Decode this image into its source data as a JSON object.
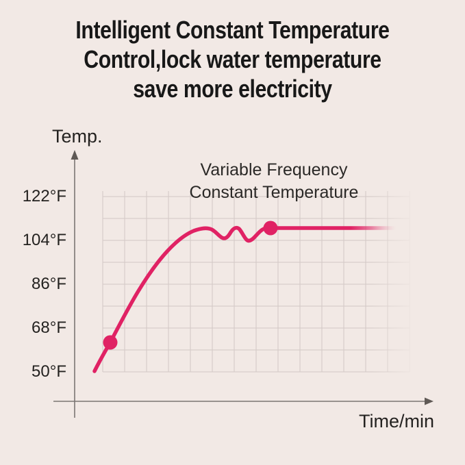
{
  "colors": {
    "background": "#f2e9e5",
    "title_text": "#181818",
    "label_text": "#242220",
    "curve": "#e02264",
    "grid": "#d2c8c5",
    "axis": "#7b7572"
  },
  "title": {
    "lines": [
      "Intelligent Constant Temperature",
      "Control,lock water temperature",
      "save more electricity"
    ]
  },
  "chart": {
    "y_axis_label": "Temp.",
    "x_axis_label": "Time/min",
    "y_tick_labels": [
      "122°F",
      "104°F",
      "86°F",
      "68°F",
      "50°F"
    ],
    "annotation_lines": [
      "Variable Frequency",
      "Constant Temperature"
    ]
  },
  "chart_data": {
    "type": "line",
    "title": "Intelligent Constant Temperature Control,lock water temperature save more electricity",
    "xlabel": "Time/min",
    "ylabel": "Temp.",
    "y_ticks_f": [
      50,
      68,
      86,
      104,
      122
    ],
    "ylim": [
      50,
      122
    ],
    "grid": true,
    "legend_position": "none",
    "annotation": "Variable Frequency Constant Temperature",
    "series": [
      {
        "name": "Variable Frequency Constant Temperature",
        "x_min": [
          0,
          0.7,
          1.9,
          3.3,
          4.4,
          5.3,
          5.7,
          6.2,
          6.6,
          7.0,
          7.8,
          13.6
        ],
        "y_f": [
          50,
          62,
          82,
          95,
          105,
          110,
          105,
          110,
          104,
          108,
          110,
          110
        ]
      }
    ],
    "markers": [
      {
        "x_min": 0.7,
        "y_f": 62
      },
      {
        "x_min": 7.8,
        "y_f": 110
      }
    ],
    "notes": "Curve rises steeply from 50°F, oscillates slightly while settling, then holds constant near 110°F; line and grid fade out at the right edge."
  }
}
